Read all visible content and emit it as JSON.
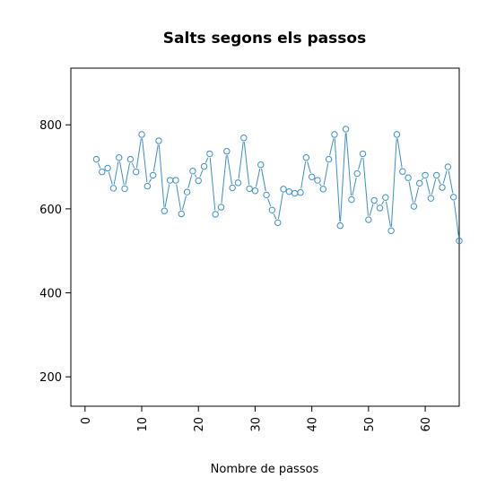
{
  "chart_data": {
    "type": "line",
    "title": "Salts segons els passos",
    "xlabel": "Nombre de passos",
    "ylabel": "",
    "xlim": [
      -2.5,
      66
    ],
    "ylim": [
      130,
      935
    ],
    "x_ticks": [
      0,
      10,
      20,
      30,
      40,
      50,
      60
    ],
    "x_tick_labels": [
      "0",
      "10",
      "20",
      "30",
      "40",
      "50",
      "60"
    ],
    "y_ticks": [
      200,
      400,
      600,
      800
    ],
    "y_tick_labels": [
      "200",
      "400",
      "600",
      "800"
    ],
    "grid": false,
    "legend": "none",
    "series": [
      {
        "color": "#3b8fc4",
        "marker": "open-circle",
        "x": [
          2,
          3,
          4,
          5,
          6,
          7,
          8,
          9,
          10,
          11,
          12,
          13,
          14,
          15,
          16,
          17,
          18,
          19,
          20,
          21,
          22,
          23,
          24,
          25,
          26,
          27,
          28,
          29,
          30,
          31,
          32,
          33,
          34,
          35,
          36,
          37,
          38,
          39,
          40,
          41,
          42,
          43,
          44,
          45,
          46,
          47,
          48,
          49,
          50,
          51,
          52,
          53,
          54,
          55,
          56,
          57,
          58,
          59,
          60,
          61,
          62,
          63,
          64,
          65,
          66
        ],
        "y": [
          718,
          688,
          697,
          649,
          722,
          648,
          718,
          688,
          777,
          654,
          680,
          762,
          595,
          668,
          668,
          588,
          640,
          690,
          667,
          701,
          731,
          587,
          604,
          737,
          650,
          662,
          769,
          648,
          643,
          705,
          633,
          597,
          567,
          647,
          641,
          637,
          639,
          722,
          676,
          668,
          647,
          718,
          777,
          560,
          790,
          622,
          684,
          731,
          574,
          620,
          602,
          627,
          548,
          777,
          689,
          674,
          606,
          661,
          680,
          625,
          680,
          651,
          700,
          628,
          524
        ]
      }
    ]
  }
}
